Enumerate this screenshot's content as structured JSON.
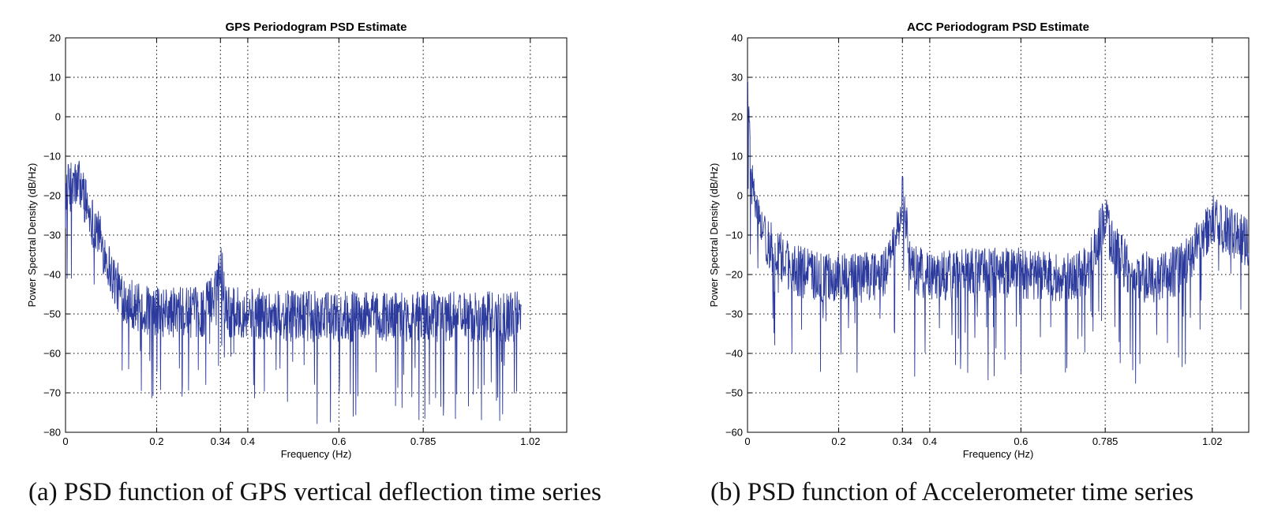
{
  "figure": {
    "caption_a": "(a) PSD function of GPS vertical deflection time series",
    "caption_b": "(b) PSD function of Accelerometer time series"
  },
  "colors": {
    "series": "#2b3a9c",
    "axis": "#000000",
    "grid": "#000000"
  },
  "chart_data": [
    {
      "type": "line",
      "title": "GPS Periodogram PSD Estimate",
      "xlabel": "Frequency (Hz)",
      "ylabel": "Power Spectral Density (dB/Hz)",
      "xlim": [
        0,
        1.1
      ],
      "ylim": [
        -80,
        20
      ],
      "xticks": [
        0,
        0.2,
        0.34,
        0.4,
        0.6,
        0.785,
        1.02
      ],
      "xtick_labels": [
        "0",
        "0.2",
        "0.34",
        "0.4",
        "0.6",
        "0.785",
        "1.02"
      ],
      "yticks": [
        -80,
        -70,
        -60,
        -50,
        -40,
        -30,
        -20,
        -10,
        0,
        10,
        20
      ],
      "ytick_labels": [
        "−80",
        "−70",
        "−60",
        "−50",
        "−40",
        "−30",
        "−20",
        "−10",
        "0",
        "10",
        "20"
      ],
      "grid": true,
      "series": [
        {
          "x": [
            0,
            0.01,
            0.02,
            0.03,
            0.04,
            0.05,
            0.06,
            0.07,
            0.08,
            0.09,
            0.1,
            0.12,
            0.14,
            0.16,
            0.2,
            0.25,
            0.3,
            0.32,
            0.335,
            0.34,
            0.345,
            0.35,
            0.36,
            0.4,
            0.5,
            0.6,
            0.7,
            0.785,
            0.9,
            1.0
          ],
          "values": [
            -18,
            -17,
            -17,
            -16,
            -19,
            -23,
            -26,
            -28,
            -32,
            -35,
            -39,
            -44,
            -46,
            -48,
            -49,
            -49,
            -49,
            -46,
            -40,
            -35,
            -40,
            -46,
            -49,
            -49,
            -50,
            -50,
            -50,
            -50,
            -50,
            -50
          ]
        }
      ]
    },
    {
      "type": "line",
      "title": "ACC Periodogram PSD Estimate",
      "xlabel": "Frequency (Hz)",
      "ylabel": "Power Spectral Density (dB/Hz)",
      "xlim": [
        0,
        1.1
      ],
      "ylim": [
        -60,
        40
      ],
      "xticks": [
        0,
        0.2,
        0.34,
        0.4,
        0.6,
        0.785,
        1.02
      ],
      "xtick_labels": [
        "0",
        "0.2",
        "0.34",
        "0.4",
        "0.6",
        "0.785",
        "1.02"
      ],
      "yticks": [
        -60,
        -50,
        -40,
        -30,
        -20,
        -10,
        0,
        10,
        20,
        30,
        40
      ],
      "ytick_labels": [
        "−60",
        "−50",
        "−40",
        "−30",
        "−20",
        "−10",
        "0",
        "10",
        "20",
        "30",
        "40"
      ],
      "grid": true,
      "series": [
        {
          "x": [
            0,
            0.005,
            0.01,
            0.02,
            0.03,
            0.05,
            0.08,
            0.1,
            0.15,
            0.2,
            0.25,
            0.3,
            0.33,
            0.34,
            0.35,
            0.36,
            0.4,
            0.5,
            0.6,
            0.7,
            0.75,
            0.77,
            0.785,
            0.8,
            0.85,
            0.9,
            0.95,
            1.0,
            1.02,
            1.05,
            1.08,
            1.1
          ],
          "values": [
            28,
            12,
            3,
            -4,
            -8,
            -12,
            -16,
            -18,
            -20,
            -20,
            -20,
            -19,
            -8,
            0,
            -8,
            -18,
            -20,
            -19,
            -19,
            -20,
            -18,
            -10,
            -5,
            -12,
            -20,
            -20,
            -18,
            -10,
            -5,
            -8,
            -10,
            -12
          ]
        }
      ]
    }
  ]
}
